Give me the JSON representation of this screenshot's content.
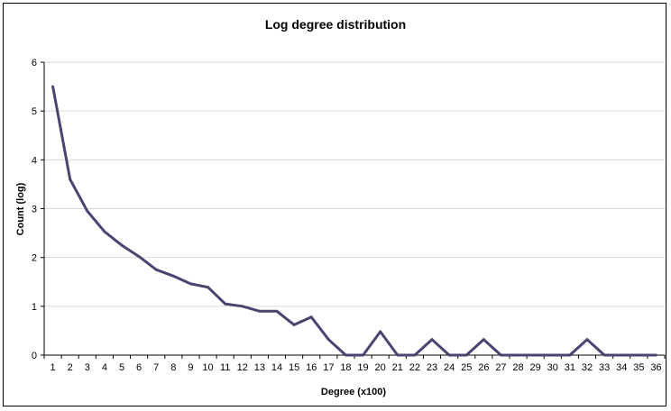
{
  "chart_data": {
    "type": "line",
    "title": "Log degree distribution",
    "xlabel": "Degree  (x100)",
    "ylabel": "Count (log)",
    "ylim": [
      0,
      6
    ],
    "yticks": [
      "0",
      "1",
      "2",
      "3",
      "4",
      "5",
      "6"
    ],
    "categories": [
      "1",
      "2",
      "3",
      "4",
      "5",
      "6",
      "7",
      "8",
      "9",
      "10",
      "11",
      "12",
      "13",
      "14",
      "15",
      "16",
      "17",
      "18",
      "19",
      "20",
      "21",
      "22",
      "23",
      "24",
      "25",
      "26",
      "27",
      "28",
      "29",
      "30",
      "31",
      "32",
      "33",
      "34",
      "35",
      "36"
    ],
    "values": [
      5.5,
      3.6,
      2.95,
      2.53,
      2.25,
      2.02,
      1.75,
      1.62,
      1.46,
      1.39,
      1.05,
      1.0,
      0.9,
      0.9,
      0.62,
      0.78,
      0.32,
      0.0,
      0.0,
      0.48,
      0.0,
      0.0,
      0.32,
      0.0,
      0.0,
      0.32,
      0.0,
      0.0,
      0.0,
      0.0,
      0.0,
      0.32,
      0.0,
      0.0,
      0.0,
      0.0
    ],
    "grid": true,
    "line_color": "#4a4470",
    "grid_color": "#d9d9d9"
  }
}
